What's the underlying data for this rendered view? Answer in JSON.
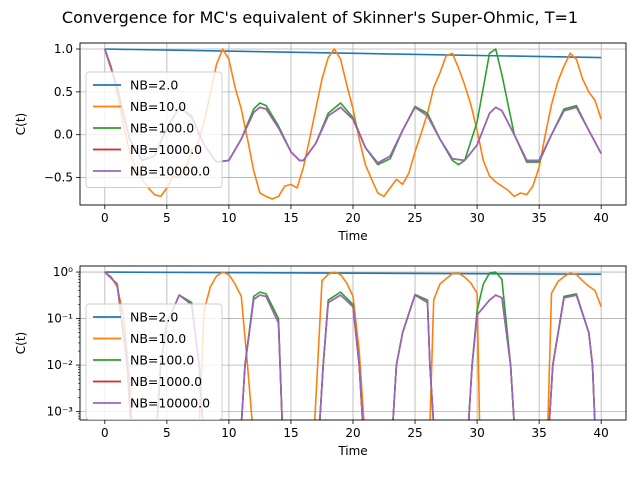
{
  "figure": {
    "title": "Convergence for MC's equivalent of Skinner's Super-Ohmic, T=1"
  },
  "colors": {
    "NB=2.0": "#1f77b4",
    "NB=10.0": "#ff7f0e",
    "NB=100.0": "#2ca02c",
    "NB=1000.0": "#d62728",
    "NB=10000.0": "#9467bd",
    "grid": "#b0b0b0"
  },
  "chart_data": [
    {
      "type": "line",
      "title": "",
      "xlabel": "Time",
      "ylabel": "C(t)",
      "xlim": [
        -2,
        42
      ],
      "ylim": [
        -0.82,
        1.07
      ],
      "yscale": "linear",
      "grid": true,
      "legend": "center-left",
      "xticks": [
        0,
        5,
        10,
        15,
        20,
        25,
        30,
        35,
        40
      ],
      "xtick_labels": [
        "0",
        "5",
        "10",
        "15",
        "20",
        "25",
        "30",
        "35",
        "40"
      ],
      "yticks": [
        1.0,
        0.5,
        0.0,
        -0.5
      ],
      "ytick_labels": [
        "1.0",
        "0.5",
        "0.0",
        "−0.5"
      ],
      "series": [
        {
          "name": "NB=2.0",
          "x": [
            0,
            40
          ],
          "y": [
            1.0,
            0.9
          ]
        },
        {
          "name": "NB=10.0",
          "x": [
            0,
            0.5,
            1,
            1.5,
            2,
            2.5,
            3,
            3.5,
            4,
            4.5,
            5,
            5.5,
            6,
            6.5,
            7,
            7.5,
            8,
            8.5,
            9,
            9.5,
            10,
            10.5,
            11,
            11.5,
            12,
            12.5,
            13,
            13.5,
            14,
            14.5,
            15,
            15.5,
            16,
            16.5,
            17,
            17.5,
            18,
            18.5,
            19,
            19.5,
            20,
            20.5,
            21,
            21.5,
            22,
            22.5,
            23,
            23.5,
            24,
            24.5,
            25,
            25.5,
            26,
            26.5,
            27,
            27.5,
            28,
            28.5,
            29,
            29.5,
            30,
            30.5,
            31,
            31.5,
            32,
            32.5,
            33,
            33.5,
            34,
            34.5,
            35,
            35.5,
            36,
            36.5,
            37,
            37.5,
            38,
            38.5,
            39,
            39.5,
            40
          ],
          "y": [
            1.0,
            0.8,
            0.48,
            0.12,
            -0.2,
            -0.4,
            -0.52,
            -0.62,
            -0.7,
            -0.72,
            -0.62,
            -0.48,
            -0.5,
            -0.4,
            -0.18,
            -0.1,
            0.15,
            0.48,
            0.82,
            1.0,
            0.88,
            0.55,
            0.3,
            -0.05,
            -0.42,
            -0.68,
            -0.72,
            -0.75,
            -0.72,
            -0.6,
            -0.58,
            -0.62,
            -0.38,
            -0.05,
            0.3,
            0.65,
            0.9,
            1.0,
            0.88,
            0.58,
            0.3,
            -0.05,
            -0.35,
            -0.52,
            -0.68,
            -0.72,
            -0.62,
            -0.52,
            -0.58,
            -0.45,
            -0.2,
            0.02,
            0.25,
            0.55,
            0.72,
            0.92,
            0.95,
            0.78,
            0.58,
            0.35,
            0.05,
            -0.3,
            -0.48,
            -0.55,
            -0.6,
            -0.65,
            -0.72,
            -0.68,
            -0.7,
            -0.6,
            -0.38,
            0.0,
            0.35,
            0.62,
            0.8,
            0.95,
            0.88,
            0.65,
            0.5,
            0.4,
            0.18
          ]
        },
        {
          "name": "NB=100.0",
          "x": [
            0,
            1,
            2,
            3,
            4,
            5,
            6,
            7,
            8,
            9,
            10,
            11,
            12,
            12.5,
            13,
            14,
            15,
            15.7,
            16,
            17,
            18,
            19,
            20,
            21,
            22,
            23,
            24,
            25,
            26,
            27,
            28,
            28.5,
            29,
            30,
            30.5,
            31,
            31.5,
            32,
            33,
            34,
            35,
            36,
            37,
            38,
            39,
            40
          ],
          "y": [
            1.0,
            0.55,
            -0.05,
            -0.3,
            -0.25,
            0.08,
            0.32,
            0.22,
            -0.12,
            -0.32,
            -0.3,
            -0.05,
            0.3,
            0.37,
            0.34,
            0.1,
            -0.2,
            -0.3,
            -0.3,
            -0.1,
            0.25,
            0.37,
            0.2,
            -0.15,
            -0.35,
            -0.28,
            0.05,
            0.33,
            0.25,
            -0.05,
            -0.3,
            -0.35,
            -0.3,
            0.15,
            0.55,
            0.95,
            1.0,
            0.7,
            0.0,
            -0.32,
            -0.32,
            0.0,
            0.3,
            0.34,
            0.05,
            -0.22
          ]
        },
        {
          "name": "NB=1000.0",
          "x": [
            0,
            1,
            2,
            3,
            4,
            5,
            6,
            7,
            8,
            9,
            10,
            11,
            12,
            12.5,
            13,
            14,
            15,
            15.7,
            16,
            17,
            18,
            19,
            20,
            21,
            22,
            23,
            24,
            25,
            26,
            27,
            28,
            29,
            30,
            31,
            31.5,
            32,
            33,
            34,
            35,
            36,
            37,
            38,
            39,
            40
          ],
          "y": [
            1.0,
            0.55,
            -0.05,
            -0.3,
            -0.25,
            0.08,
            0.32,
            0.2,
            -0.12,
            -0.32,
            -0.3,
            -0.05,
            0.26,
            0.32,
            0.3,
            0.08,
            -0.2,
            -0.3,
            -0.3,
            -0.1,
            0.22,
            0.32,
            0.18,
            -0.15,
            -0.33,
            -0.25,
            0.05,
            0.32,
            0.22,
            -0.05,
            -0.28,
            -0.3,
            -0.12,
            0.25,
            0.32,
            0.28,
            0.0,
            -0.3,
            -0.3,
            0.0,
            0.28,
            0.32,
            0.05,
            -0.22
          ]
        },
        {
          "name": "NB=10000.0",
          "x": [
            0,
            1,
            2,
            3,
            4,
            5,
            6,
            7,
            8,
            9,
            10,
            11,
            12,
            12.5,
            13,
            14,
            15,
            15.7,
            16,
            17,
            18,
            19,
            20,
            21,
            22,
            23,
            24,
            25,
            26,
            27,
            28,
            29,
            30,
            31,
            31.5,
            32,
            33,
            34,
            35,
            36,
            37,
            38,
            39,
            40
          ],
          "y": [
            1.0,
            0.55,
            -0.05,
            -0.3,
            -0.25,
            0.08,
            0.32,
            0.2,
            -0.12,
            -0.32,
            -0.3,
            -0.05,
            0.26,
            0.32,
            0.3,
            0.08,
            -0.2,
            -0.3,
            -0.3,
            -0.1,
            0.22,
            0.32,
            0.18,
            -0.15,
            -0.33,
            -0.25,
            0.05,
            0.32,
            0.22,
            -0.05,
            -0.28,
            -0.3,
            -0.12,
            0.25,
            0.32,
            0.28,
            0.0,
            -0.3,
            -0.3,
            0.0,
            0.28,
            0.32,
            0.05,
            -0.22
          ]
        }
      ]
    },
    {
      "type": "line",
      "title": "",
      "xlabel": "Time",
      "ylabel": "C(t)",
      "xlim": [
        -2,
        42
      ],
      "ylim": [
        0.00066,
        1.35
      ],
      "yscale": "log",
      "grid": true,
      "legend": "center-left",
      "xticks": [
        0,
        5,
        10,
        15,
        20,
        25,
        30,
        35,
        40
      ],
      "xtick_labels": [
        "0",
        "5",
        "10",
        "15",
        "20",
        "25",
        "30",
        "35",
        "40"
      ],
      "yticks": [
        1,
        0.1,
        0.01,
        0.001
      ],
      "ytick_labels": [
        "10⁰",
        "10⁻¹",
        "10⁻²",
        "10⁻³"
      ],
      "series": [
        {
          "name": "NB=2.0",
          "x": [
            0,
            40
          ],
          "y": [
            1.0,
            0.9
          ]
        },
        {
          "name": "NB=10.0",
          "x": [
            0,
            0.5,
            1,
            1.5,
            2,
            2.2,
            7.6,
            8,
            8.5,
            9,
            9.5,
            10,
            10.5,
            11,
            11.5,
            11.9,
            16.9,
            17.5,
            18,
            18.5,
            19,
            19.5,
            20,
            20.5,
            20.9,
            26.2,
            26.5,
            27,
            27.5,
            28,
            28.5,
            29,
            29.5,
            30,
            30.2,
            35.7,
            36,
            36.5,
            37,
            37.5,
            38,
            38.5,
            39,
            39.5,
            40
          ],
          "y": [
            1.0,
            0.8,
            0.48,
            0.12,
            0.005,
            0.0005,
            0.0005,
            0.15,
            0.48,
            0.82,
            1.0,
            0.88,
            0.55,
            0.3,
            0.01,
            0.0005,
            0.0005,
            0.65,
            0.9,
            1.0,
            0.88,
            0.58,
            0.3,
            0.02,
            0.0005,
            0.0005,
            0.25,
            0.55,
            0.72,
            0.92,
            0.95,
            0.78,
            0.58,
            0.35,
            0.0005,
            0.0005,
            0.35,
            0.62,
            0.8,
            0.95,
            0.88,
            0.65,
            0.5,
            0.4,
            0.18
          ]
        },
        {
          "name": "NB=100.0",
          "x": [
            0,
            1,
            1.8,
            2.1,
            4.2,
            4.5,
            5,
            6,
            7,
            7.6,
            7.9,
            11,
            11.3,
            12,
            12.5,
            13,
            14,
            14.3,
            17.3,
            17.6,
            18,
            19,
            20,
            20.5,
            20.8,
            23.2,
            23.5,
            24,
            25,
            26,
            26.2,
            26.5,
            29.3,
            29.6,
            30,
            30.5,
            31,
            31.5,
            32,
            32.7,
            33,
            35.8,
            36.1,
            37,
            38,
            39,
            39.3,
            39.5
          ],
          "y": [
            1.0,
            0.55,
            0.01,
            0.0005,
            0.0005,
            0.01,
            0.08,
            0.32,
            0.22,
            0.01,
            0.0005,
            0.0005,
            0.01,
            0.3,
            0.37,
            0.34,
            0.1,
            0.0005,
            0.0005,
            0.01,
            0.25,
            0.37,
            0.2,
            0.01,
            0.0005,
            0.0005,
            0.01,
            0.05,
            0.33,
            0.25,
            0.01,
            0.0005,
            0.0005,
            0.01,
            0.15,
            0.55,
            0.95,
            1.0,
            0.7,
            0.01,
            0.0005,
            0.0005,
            0.01,
            0.3,
            0.34,
            0.05,
            0.01,
            0.0005
          ]
        },
        {
          "name": "NB=1000.0",
          "x": [
            0,
            1,
            1.8,
            2.1,
            4.2,
            4.5,
            5,
            6,
            7,
            7.6,
            7.9,
            11,
            11.3,
            12,
            12.5,
            13,
            14,
            14.3,
            17.3,
            17.6,
            18,
            19,
            20,
            20.5,
            20.8,
            23.2,
            23.5,
            24,
            25,
            26,
            26.2,
            26.5,
            29.3,
            29.6,
            30,
            31,
            31.5,
            32,
            32.7,
            33,
            35.8,
            36.1,
            37,
            38,
            39,
            39.3,
            39.5
          ],
          "y": [
            1.0,
            0.55,
            0.01,
            0.0005,
            0.0005,
            0.01,
            0.08,
            0.32,
            0.2,
            0.01,
            0.0005,
            0.0005,
            0.01,
            0.26,
            0.32,
            0.3,
            0.08,
            0.0005,
            0.0005,
            0.01,
            0.22,
            0.32,
            0.18,
            0.01,
            0.0005,
            0.0005,
            0.01,
            0.05,
            0.32,
            0.22,
            0.01,
            0.0005,
            0.0005,
            0.01,
            0.12,
            0.25,
            0.32,
            0.28,
            0.01,
            0.0005,
            0.0005,
            0.01,
            0.28,
            0.32,
            0.05,
            0.01,
            0.0005
          ]
        },
        {
          "name": "NB=10000.0",
          "x": [
            0,
            1,
            1.8,
            2.1,
            4.2,
            4.5,
            5,
            6,
            7,
            7.6,
            7.9,
            11,
            11.3,
            12,
            12.5,
            13,
            14,
            14.3,
            17.3,
            17.6,
            18,
            19,
            20,
            20.5,
            20.8,
            23.2,
            23.5,
            24,
            25,
            26,
            26.2,
            26.5,
            29.3,
            29.6,
            30,
            31,
            31.5,
            32,
            32.7,
            33,
            35.8,
            36.1,
            37,
            38,
            39,
            39.3,
            39.5
          ],
          "y": [
            1.0,
            0.55,
            0.01,
            0.0005,
            0.0005,
            0.01,
            0.08,
            0.32,
            0.2,
            0.01,
            0.0005,
            0.0005,
            0.01,
            0.26,
            0.32,
            0.3,
            0.08,
            0.0005,
            0.0005,
            0.01,
            0.22,
            0.32,
            0.18,
            0.01,
            0.0005,
            0.0005,
            0.01,
            0.05,
            0.32,
            0.22,
            0.01,
            0.0005,
            0.0005,
            0.01,
            0.12,
            0.25,
            0.32,
            0.28,
            0.01,
            0.0005,
            0.0005,
            0.01,
            0.28,
            0.32,
            0.05,
            0.01,
            0.0005
          ]
        }
      ]
    }
  ]
}
